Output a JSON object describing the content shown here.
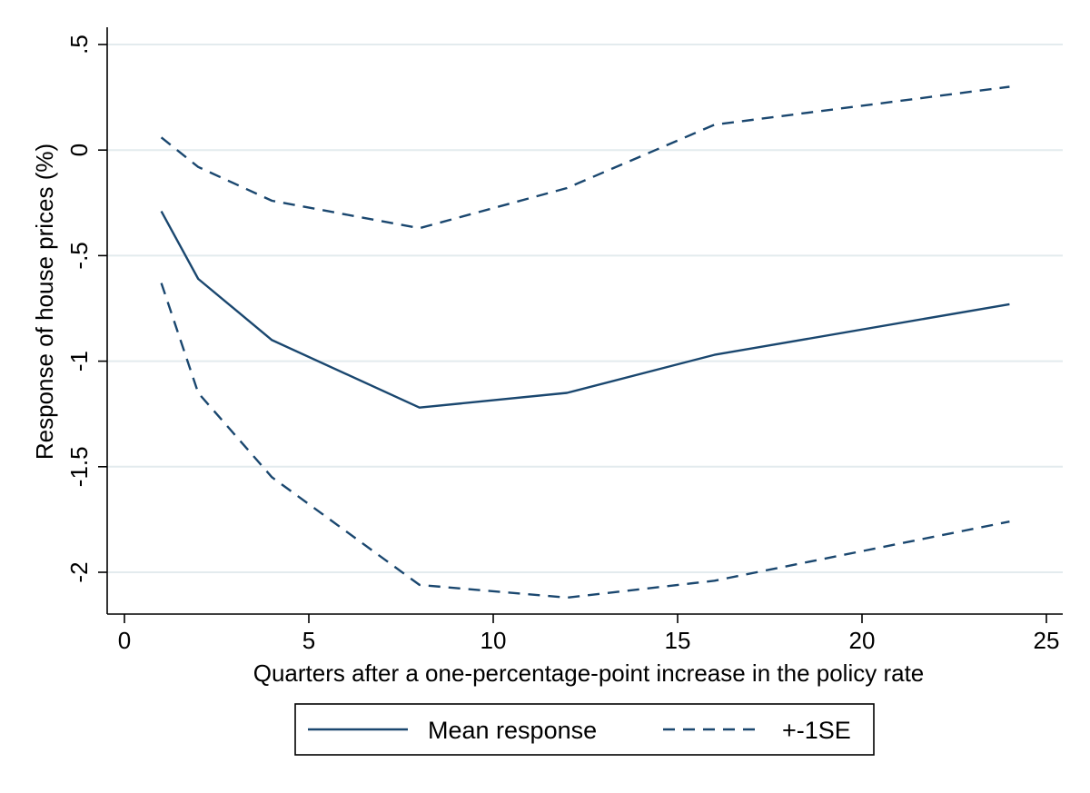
{
  "chart_data": {
    "type": "line",
    "xlabel": "Quarters after a one-percentage-point increase in the policy rate",
    "ylabel": "Response of house prices (%)",
    "xlim": [
      0,
      25
    ],
    "ylim": [
      -2,
      0.5
    ],
    "x_ticks": [
      "0",
      "5",
      "10",
      "15",
      "20",
      "25"
    ],
    "x_tick_values": [
      0,
      5,
      10,
      15,
      20,
      25
    ],
    "y_ticks": [
      "-2",
      "-1.5",
      "-1",
      "-.5",
      "0",
      ".5"
    ],
    "y_tick_values": [
      -2,
      -1.5,
      -1,
      -0.5,
      0,
      0.5
    ],
    "x": [
      1,
      2,
      4,
      8,
      12,
      16,
      24
    ],
    "series": [
      {
        "name": "Mean response",
        "style": "solid",
        "color": "#1a476f",
        "values": [
          -0.29,
          -0.61,
          -0.9,
          -1.22,
          -1.15,
          -0.97,
          -0.73
        ]
      },
      {
        "name": "+-1SE",
        "style": "dashed",
        "color": "#1a476f",
        "values": [
          0.06,
          -0.08,
          -0.24,
          -0.37,
          -0.18,
          0.12,
          0.3
        ]
      },
      {
        "name": "",
        "style": "dashed",
        "color": "#1a476f",
        "values": [
          -0.63,
          -1.15,
          -1.55,
          -2.06,
          -2.12,
          -2.04,
          -1.76
        ]
      }
    ],
    "legend": [
      {
        "label": "Mean response",
        "style": "solid"
      },
      {
        "label": "+-1SE",
        "style": "dashed"
      }
    ],
    "legend_position": "bottom",
    "grid": true
  }
}
